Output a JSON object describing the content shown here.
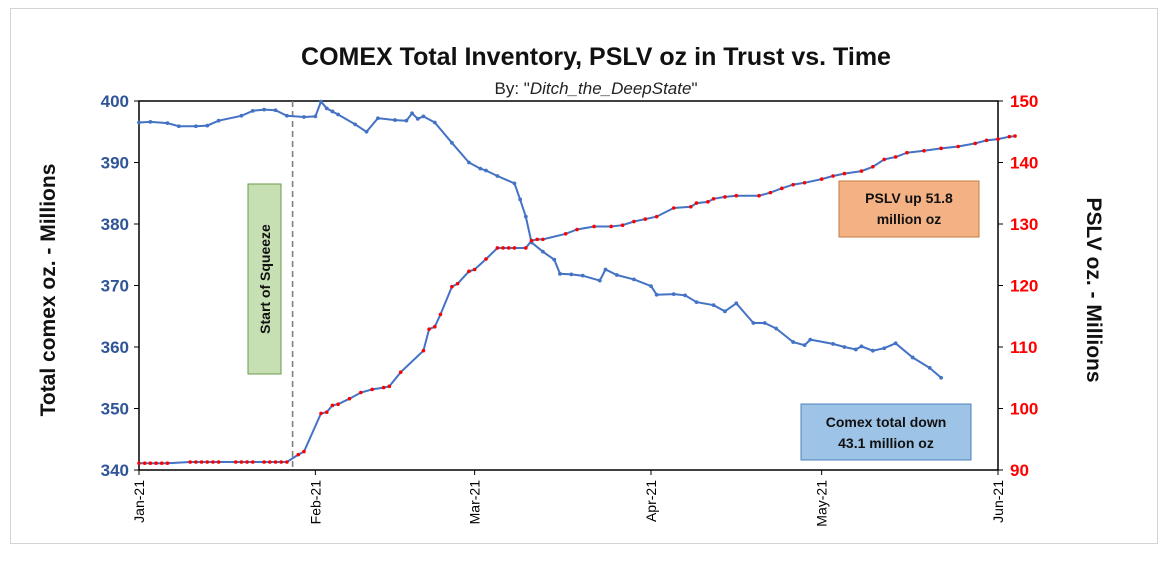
{
  "chart_data": {
    "type": "line",
    "title": "COMEX Total Inventory,  PSLV oz in Trust vs. Time",
    "subtitle_prefix": "By: \"",
    "subtitle_author": "Ditch_the_DeepState",
    "subtitle_suffix": "\"",
    "y_left_label": "Total comex oz. - Millions",
    "y_right_label": "PSLV  oz. - Millions",
    "x_ticks": [
      "Jan-21",
      "Feb-21",
      "Mar-21",
      "Apr-21",
      "May-21",
      "Jun-21"
    ],
    "x_range": [
      "2021-01-01",
      "2021-06-01"
    ],
    "y_left_ticks": [
      "340",
      "350",
      "360",
      "370",
      "380",
      "390",
      "400"
    ],
    "y_left_range": [
      340,
      400
    ],
    "y_right_ticks": [
      "90",
      "100",
      "110",
      "120",
      "130",
      "140",
      "150"
    ],
    "y_right_range": [
      90,
      150
    ],
    "grid": false,
    "annotations": {
      "squeeze_date": "2021-01-28",
      "squeeze_label": "Start of Squeeze",
      "pslv_box_line1": "PSLV up 51.8",
      "pslv_box_line2": "million oz",
      "comex_box_line1": "Comex total down",
      "comex_box_line2": "43.1 million oz"
    },
    "colors": {
      "comex": "#4472C4",
      "pslv_line": "#4472C4",
      "pslv_markers": "#FF0000",
      "left_axis": "#2F5597",
      "right_axis": "#FF0000",
      "squeeze_box": "#C6E0B4",
      "pslv_box": "#F4B183",
      "comex_box": "#9DC3E6"
    },
    "series": [
      {
        "axis": "left",
        "points": [
          [
            "2021-01-01",
            396.5
          ],
          [
            "2021-01-03",
            396.6
          ],
          [
            "2021-01-06",
            396.4
          ],
          [
            "2021-01-08",
            395.9
          ],
          [
            "2021-01-11",
            395.9
          ],
          [
            "2021-01-13",
            396.0
          ],
          [
            "2021-01-15",
            396.8
          ],
          [
            "2021-01-19",
            397.6
          ],
          [
            "2021-01-21",
            398.4
          ],
          [
            "2021-01-23",
            398.6
          ],
          [
            "2021-01-25",
            398.5
          ],
          [
            "2021-01-27",
            397.6
          ],
          [
            "2021-01-30",
            397.4
          ],
          [
            "2021-02-01",
            397.5
          ],
          [
            "2021-02-02",
            399.9
          ],
          [
            "2021-02-03",
            398.8
          ],
          [
            "2021-02-04",
            398.3
          ],
          [
            "2021-02-05",
            397.8
          ],
          [
            "2021-02-08",
            396.2
          ],
          [
            "2021-02-10",
            395.0
          ],
          [
            "2021-02-12",
            397.2
          ],
          [
            "2021-02-15",
            396.9
          ],
          [
            "2021-02-17",
            396.8
          ],
          [
            "2021-02-18",
            398.0
          ],
          [
            "2021-02-19",
            397.1
          ],
          [
            "2021-02-20",
            397.5
          ],
          [
            "2021-02-22",
            396.5
          ],
          [
            "2021-02-25",
            393.2
          ],
          [
            "2021-02-28",
            390.0
          ],
          [
            "2021-03-02",
            389.0
          ],
          [
            "2021-03-03",
            388.7
          ],
          [
            "2021-03-05",
            387.8
          ],
          [
            "2021-03-08",
            386.6
          ],
          [
            "2021-03-09",
            384.0
          ],
          [
            "2021-03-10",
            381.2
          ],
          [
            "2021-03-11",
            377.0
          ],
          [
            "2021-03-13",
            375.5
          ],
          [
            "2021-03-15",
            374.2
          ],
          [
            "2021-03-16",
            371.9
          ],
          [
            "2021-03-18",
            371.8
          ],
          [
            "2021-03-20",
            371.6
          ],
          [
            "2021-03-23",
            370.8
          ],
          [
            "2021-03-24",
            372.6
          ],
          [
            "2021-03-26",
            371.7
          ],
          [
            "2021-03-29",
            371.0
          ],
          [
            "2021-04-01",
            369.9
          ],
          [
            "2021-04-02",
            368.5
          ],
          [
            "2021-04-05",
            368.6
          ],
          [
            "2021-04-07",
            368.4
          ],
          [
            "2021-04-09",
            367.3
          ],
          [
            "2021-04-12",
            366.8
          ],
          [
            "2021-04-14",
            365.8
          ],
          [
            "2021-04-16",
            367.1
          ],
          [
            "2021-04-19",
            363.9
          ],
          [
            "2021-04-21",
            363.9
          ],
          [
            "2021-04-23",
            363.0
          ],
          [
            "2021-04-26",
            360.8
          ],
          [
            "2021-04-28",
            360.3
          ],
          [
            "2021-04-29",
            361.2
          ],
          [
            "2021-05-03",
            360.5
          ],
          [
            "2021-05-05",
            360.0
          ],
          [
            "2021-05-07",
            359.6
          ],
          [
            "2021-05-08",
            360.1
          ],
          [
            "2021-05-10",
            359.4
          ],
          [
            "2021-05-12",
            359.8
          ],
          [
            "2021-05-14",
            360.6
          ],
          [
            "2021-05-17",
            358.3
          ],
          [
            "2021-05-20",
            356.6
          ],
          [
            "2021-05-22",
            355.0
          ]
        ]
      },
      {
        "axis": "right",
        "points": [
          [
            "2021-01-01",
            91.1
          ],
          [
            "2021-01-02",
            91.1
          ],
          [
            "2021-01-03",
            91.1
          ],
          [
            "2021-01-04",
            91.1
          ],
          [
            "2021-01-05",
            91.1
          ],
          [
            "2021-01-06",
            91.1
          ],
          [
            "2021-01-10",
            91.3
          ],
          [
            "2021-01-11",
            91.3
          ],
          [
            "2021-01-12",
            91.3
          ],
          [
            "2021-01-13",
            91.3
          ],
          [
            "2021-01-14",
            91.3
          ],
          [
            "2021-01-15",
            91.3
          ],
          [
            "2021-01-18",
            91.3
          ],
          [
            "2021-01-19",
            91.3
          ],
          [
            "2021-01-20",
            91.3
          ],
          [
            "2021-01-21",
            91.3
          ],
          [
            "2021-01-23",
            91.3
          ],
          [
            "2021-01-24",
            91.3
          ],
          [
            "2021-01-25",
            91.3
          ],
          [
            "2021-01-26",
            91.3
          ],
          [
            "2021-01-27",
            91.3
          ],
          [
            "2021-01-29",
            92.5
          ],
          [
            "2021-01-30",
            93.0
          ],
          [
            "2021-02-02",
            99.2
          ],
          [
            "2021-02-03",
            99.4
          ],
          [
            "2021-02-04",
            100.5
          ],
          [
            "2021-02-05",
            100.7
          ],
          [
            "2021-02-07",
            101.6
          ],
          [
            "2021-02-09",
            102.6
          ],
          [
            "2021-02-11",
            103.1
          ],
          [
            "2021-02-13",
            103.4
          ],
          [
            "2021-02-14",
            103.6
          ],
          [
            "2021-02-16",
            105.9
          ],
          [
            "2021-02-20",
            109.4
          ],
          [
            "2021-02-21",
            112.9
          ],
          [
            "2021-02-22",
            113.3
          ],
          [
            "2021-02-23",
            115.3
          ],
          [
            "2021-02-25",
            119.8
          ],
          [
            "2021-02-26",
            120.3
          ],
          [
            "2021-02-28",
            122.3
          ],
          [
            "2021-03-01",
            122.6
          ],
          [
            "2021-03-03",
            124.3
          ],
          [
            "2021-03-05",
            126.1
          ],
          [
            "2021-03-06",
            126.1
          ],
          [
            "2021-03-07",
            126.1
          ],
          [
            "2021-03-08",
            126.1
          ],
          [
            "2021-03-10",
            126.1
          ],
          [
            "2021-03-11",
            127.3
          ],
          [
            "2021-03-12",
            127.5
          ],
          [
            "2021-03-13",
            127.5
          ],
          [
            "2021-03-17",
            128.4
          ],
          [
            "2021-03-19",
            129.1
          ],
          [
            "2021-03-22",
            129.6
          ],
          [
            "2021-03-25",
            129.6
          ],
          [
            "2021-03-27",
            129.8
          ],
          [
            "2021-03-29",
            130.4
          ],
          [
            "2021-03-31",
            130.8
          ],
          [
            "2021-04-02",
            131.2
          ],
          [
            "2021-04-05",
            132.6
          ],
          [
            "2021-04-08",
            132.8
          ],
          [
            "2021-04-09",
            133.4
          ],
          [
            "2021-04-11",
            133.6
          ],
          [
            "2021-04-12",
            134.1
          ],
          [
            "2021-04-14",
            134.4
          ],
          [
            "2021-04-16",
            134.6
          ],
          [
            "2021-04-20",
            134.6
          ],
          [
            "2021-04-22",
            135.1
          ],
          [
            "2021-04-24",
            135.8
          ],
          [
            "2021-04-26",
            136.4
          ],
          [
            "2021-04-28",
            136.7
          ],
          [
            "2021-05-01",
            137.3
          ],
          [
            "2021-05-03",
            137.8
          ],
          [
            "2021-05-05",
            138.2
          ],
          [
            "2021-05-08",
            138.6
          ],
          [
            "2021-05-10",
            139.3
          ],
          [
            "2021-05-12",
            140.5
          ],
          [
            "2021-05-14",
            140.9
          ],
          [
            "2021-05-16",
            141.6
          ],
          [
            "2021-05-19",
            141.9
          ],
          [
            "2021-05-22",
            142.3
          ],
          [
            "2021-05-25",
            142.6
          ],
          [
            "2021-05-28",
            143.1
          ],
          [
            "2021-05-30",
            143.6
          ],
          [
            "2021-06-01",
            143.8
          ],
          [
            "2021-06-03",
            144.2
          ],
          [
            "2021-06-04",
            144.3
          ]
        ]
      }
    ]
  }
}
